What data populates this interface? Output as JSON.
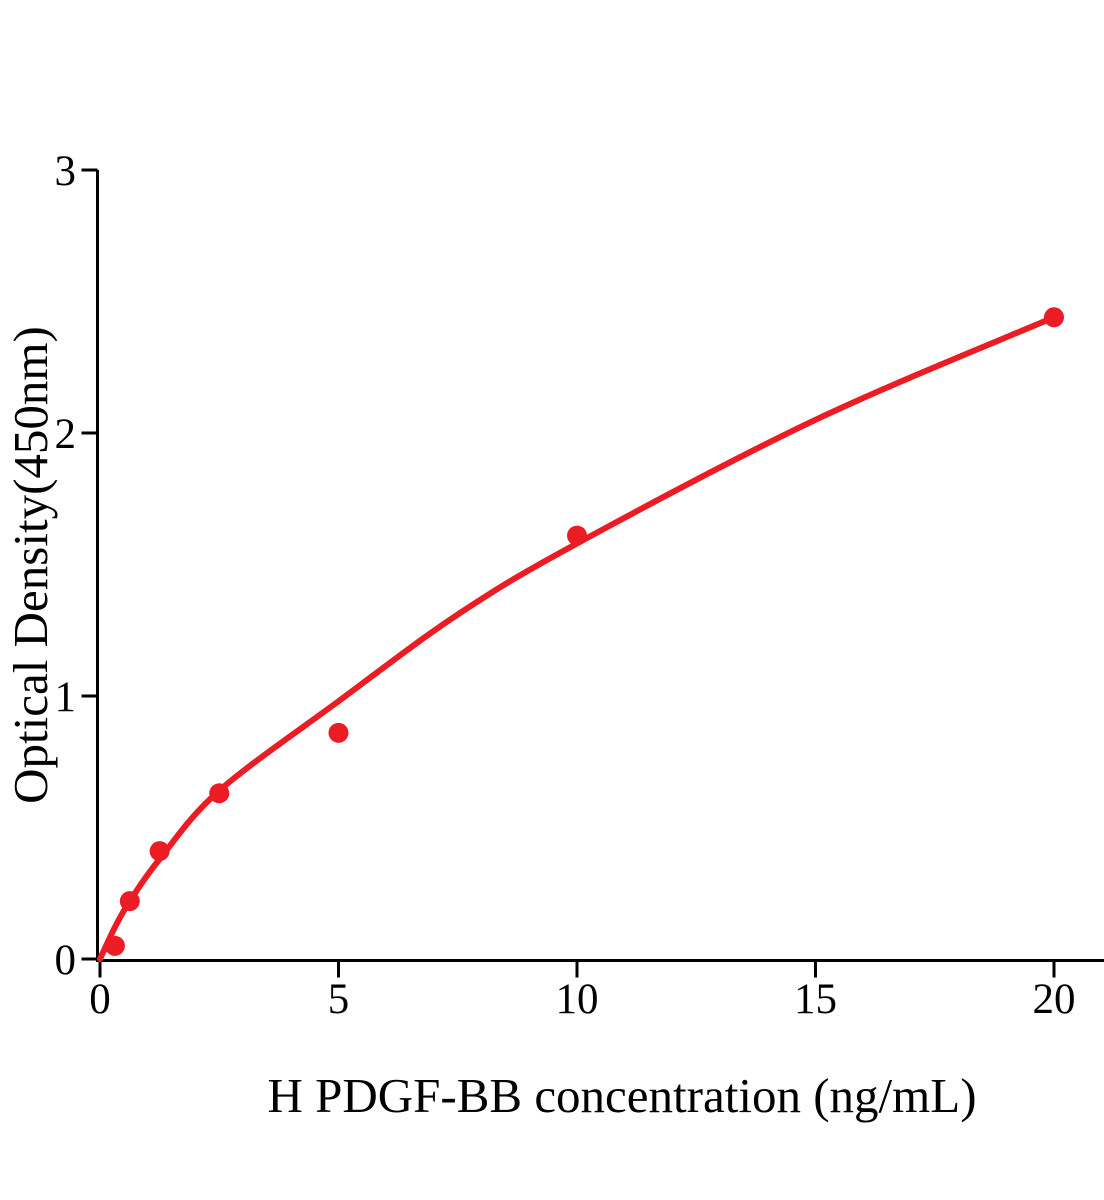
{
  "chart_data": {
    "type": "scatter",
    "title": "",
    "xlabel": "H PDGF-BB concentration (ng/mL)",
    "ylabel": "Optical Density(450nm)",
    "xlim": [
      0,
      20
    ],
    "ylim": [
      0,
      3
    ],
    "grid": false,
    "legend_position": "none",
    "x_ticks": [
      {
        "value": 0,
        "label": "0"
      },
      {
        "value": 5,
        "label": "5"
      },
      {
        "value": 10,
        "label": "10"
      },
      {
        "value": 15,
        "label": "15"
      },
      {
        "value": 20,
        "label": "20"
      }
    ],
    "y_ticks": [
      {
        "value": 0,
        "label": "0"
      },
      {
        "value": 1,
        "label": "1"
      },
      {
        "value": 2,
        "label": "2"
      },
      {
        "value": 3,
        "label": "3"
      }
    ],
    "series": [
      {
        "name": "standard-points",
        "type": "scatter",
        "color": "#EC1C24",
        "marker": "circle",
        "points": [
          {
            "x": 0.3125,
            "y": 0.05
          },
          {
            "x": 0.625,
            "y": 0.22
          },
          {
            "x": 1.25,
            "y": 0.41
          },
          {
            "x": 2.5,
            "y": 0.63
          },
          {
            "x": 5,
            "y": 0.86
          },
          {
            "x": 10,
            "y": 1.61
          },
          {
            "x": 20,
            "y": 2.44
          }
        ]
      },
      {
        "name": "fitted-curve",
        "type": "line",
        "color": "#EC1C24",
        "points": [
          {
            "x": 0,
            "y": 0
          },
          {
            "x": 0.31,
            "y": 0.12
          },
          {
            "x": 0.625,
            "y": 0.22
          },
          {
            "x": 1.25,
            "y": 0.38
          },
          {
            "x": 2.5,
            "y": 0.64
          },
          {
            "x": 5,
            "y": 0.98
          },
          {
            "x": 7.5,
            "y": 1.31
          },
          {
            "x": 10,
            "y": 1.58
          },
          {
            "x": 15,
            "y": 2.05
          },
          {
            "x": 20,
            "y": 2.44
          }
        ]
      }
    ],
    "colors": {
      "accent": "#EC1C24",
      "axis": "#000000",
      "background": "#FFFFFF"
    }
  }
}
